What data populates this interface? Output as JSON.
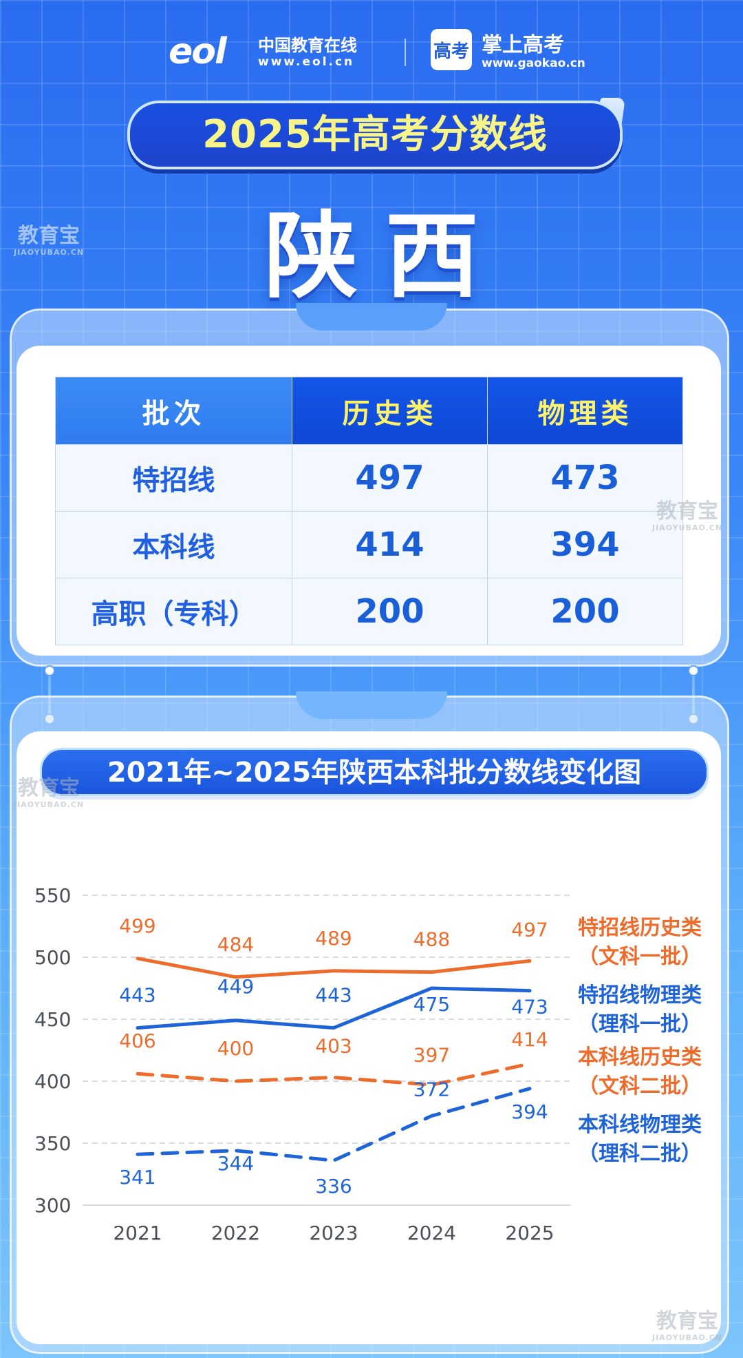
{
  "brand": {
    "eol_logo": "eol",
    "eol_name": "中国教育在线",
    "eol_url": "www.eol.cn",
    "gaokao_logo": "高考",
    "gaokao_name": "掌上高考",
    "gaokao_url": "www.gaokao.cn"
  },
  "banner": {
    "title": "2025年高考分数线"
  },
  "province": "陕西",
  "watermark": {
    "text": "教育宝",
    "sub": "JIAOYUBAO.CN"
  },
  "score_table": {
    "headers": [
      "批次",
      "历史类",
      "物理类"
    ],
    "rows": [
      {
        "label": "特招线",
        "history": "497",
        "physics": "473"
      },
      {
        "label": "本科线",
        "history": "414",
        "physics": "394"
      },
      {
        "label": "高职（专科）",
        "history": "200",
        "physics": "200"
      }
    ]
  },
  "chart_data": {
    "type": "line",
    "title": "2021年~2025年陕西本科批分数线变化图",
    "x": [
      "2021",
      "2022",
      "2023",
      "2024",
      "2025"
    ],
    "ylim": [
      300,
      550
    ],
    "yticks": [
      "550",
      "500",
      "450",
      "400",
      "350",
      "300"
    ],
    "grid": true,
    "legend_position": "right",
    "series": [
      {
        "name": "特招线历史类",
        "sub": "（文科一批）",
        "values": [
          499,
          484,
          489,
          488,
          497
        ],
        "color": "#ed6c2c",
        "style": "solid"
      },
      {
        "name": "特招线物理类",
        "sub": "（理科一批）",
        "values": [
          443,
          449,
          443,
          475,
          473
        ],
        "color": "#1e64d8",
        "style": "solid"
      },
      {
        "name": "本科线历史类",
        "sub": "（文科二批）",
        "values": [
          406,
          400,
          403,
          397,
          414
        ],
        "color": "#ed6c2c",
        "style": "dashed"
      },
      {
        "name": "本科线物理类",
        "sub": "（理科二批）",
        "values": [
          341,
          344,
          336,
          372,
          394
        ],
        "color": "#1e64d8",
        "style": "dashed"
      }
    ]
  }
}
